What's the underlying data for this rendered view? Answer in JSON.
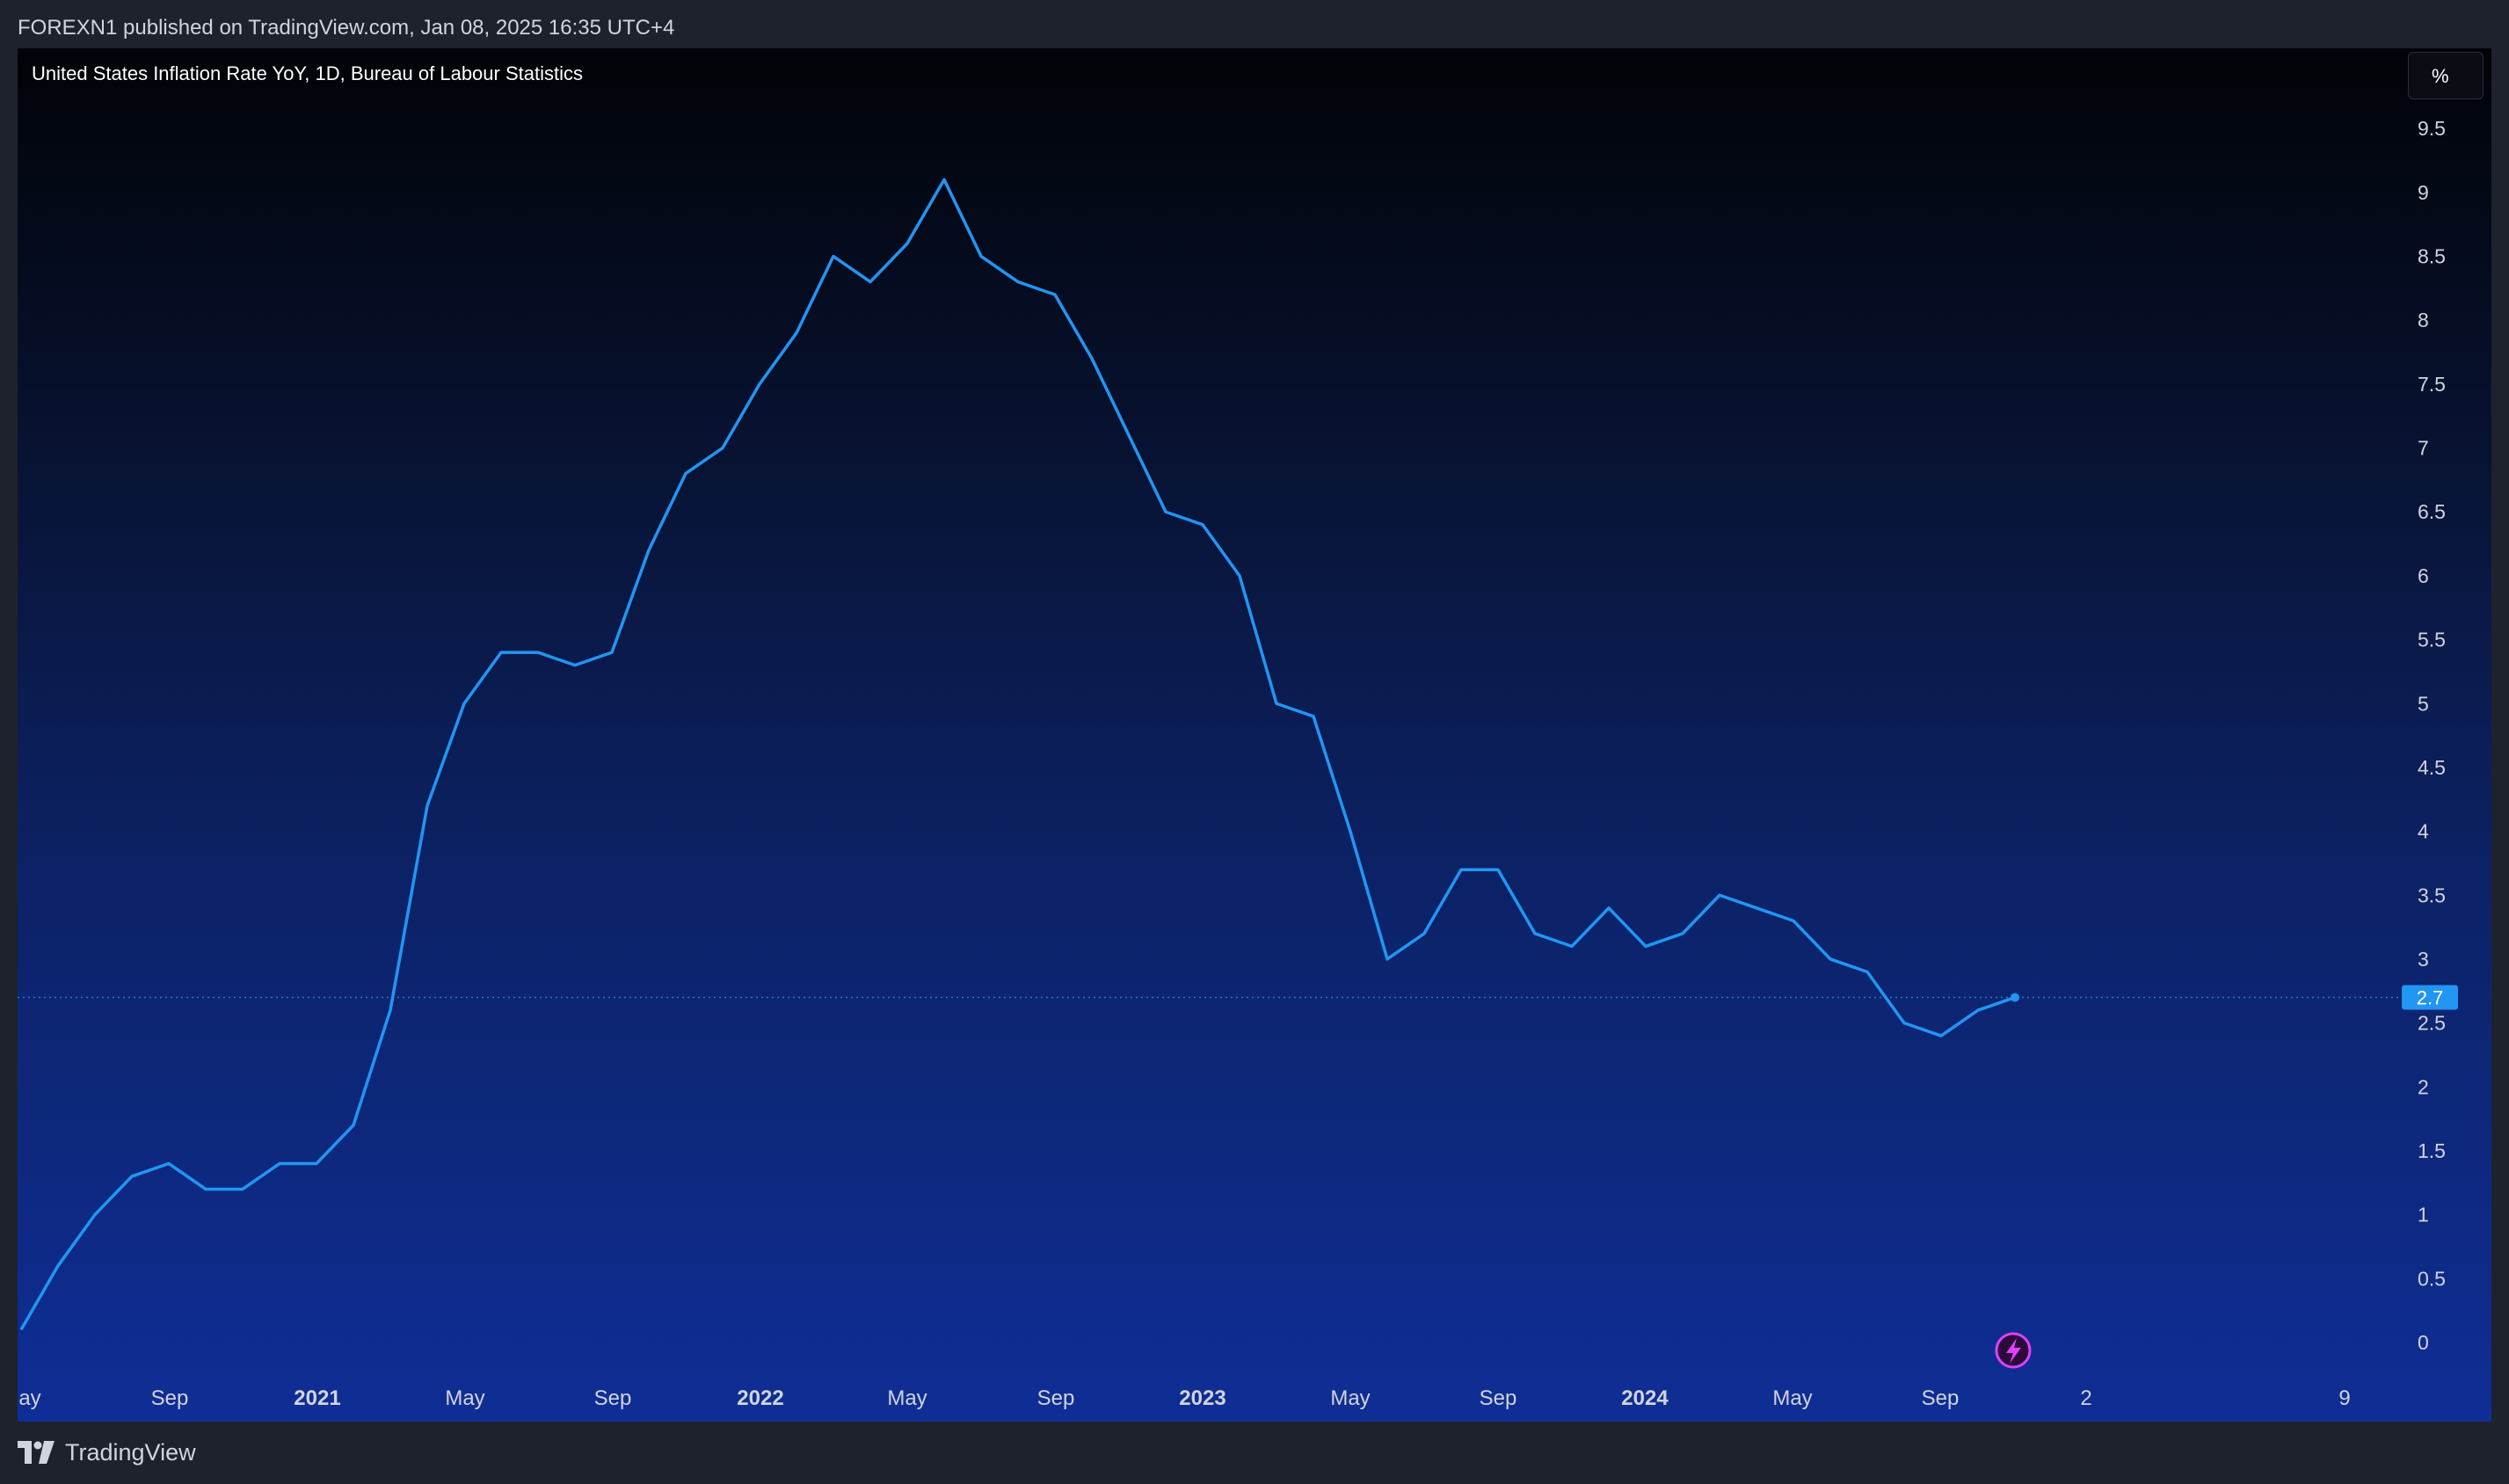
{
  "header": {
    "published": "FOREXN1 published on TradingView.com, Jan 08, 2025 16:35 UTC+4"
  },
  "chart_title": "United States Inflation Rate YoY, 1D, Bureau of Labour Statistics",
  "unit_label": "%",
  "footer": {
    "brand": "TradingView"
  },
  "colors": {
    "line": "#2196f3",
    "axis_text": "#d1d4dc",
    "badge": "#2196f3",
    "lightning": "#e040fb"
  },
  "chart_data": {
    "type": "line",
    "title": "United States Inflation Rate YoY, 1D, Bureau of Labour Statistics",
    "ylabel": "%",
    "ylim": [
      -0.25,
      9.75
    ],
    "grid": false,
    "x": [
      "2020-05",
      "2020-06",
      "2020-07",
      "2020-08",
      "2020-09",
      "2020-10",
      "2020-11",
      "2020-12",
      "2021-01",
      "2021-02",
      "2021-03",
      "2021-04",
      "2021-05",
      "2021-06",
      "2021-07",
      "2021-08",
      "2021-09",
      "2021-10",
      "2021-11",
      "2021-12",
      "2022-01",
      "2022-02",
      "2022-03",
      "2022-04",
      "2022-05",
      "2022-06",
      "2022-07",
      "2022-08",
      "2022-09",
      "2022-10",
      "2022-11",
      "2022-12",
      "2023-01",
      "2023-02",
      "2023-03",
      "2023-04",
      "2023-05",
      "2023-06",
      "2023-07",
      "2023-08",
      "2023-09",
      "2023-10",
      "2023-11",
      "2023-12",
      "2024-01",
      "2024-02",
      "2024-03",
      "2024-04",
      "2024-05",
      "2024-06",
      "2024-07",
      "2024-08",
      "2024-09",
      "2024-10",
      "2024-11"
    ],
    "series": [
      {
        "values": [
          0.1,
          0.6,
          1.0,
          1.3,
          1.4,
          1.2,
          1.2,
          1.4,
          1.4,
          1.7,
          2.6,
          4.2,
          5.0,
          5.4,
          5.4,
          5.3,
          5.4,
          6.2,
          6.8,
          7.0,
          7.5,
          7.9,
          8.5,
          8.3,
          8.6,
          9.1,
          8.5,
          8.3,
          8.2,
          7.7,
          7.1,
          6.5,
          6.4,
          6.0,
          5.0,
          4.9,
          4.0,
          3.0,
          3.2,
          3.7,
          3.7,
          3.2,
          3.1,
          3.4,
          3.1,
          3.2,
          3.5,
          3.4,
          3.3,
          3.0,
          2.9,
          2.5,
          2.4,
          2.6,
          2.7
        ]
      }
    ],
    "last_value": "2.7",
    "y_ticks": [
      "9.5",
      "9",
      "8.5",
      "8",
      "7.5",
      "7",
      "6.5",
      "6",
      "5.5",
      "5",
      "4.5",
      "4",
      "3.5",
      "3",
      "2.5",
      "2",
      "1.5",
      "1",
      "0.5",
      "0"
    ],
    "x_ticks": [
      {
        "label": "ay",
        "bold": false
      },
      {
        "label": "Sep",
        "bold": false
      },
      {
        "label": "2021",
        "bold": true
      },
      {
        "label": "May",
        "bold": false
      },
      {
        "label": "Sep",
        "bold": false
      },
      {
        "label": "2022",
        "bold": true
      },
      {
        "label": "May",
        "bold": false
      },
      {
        "label": "Sep",
        "bold": false
      },
      {
        "label": "2023",
        "bold": true
      },
      {
        "label": "May",
        "bold": false
      },
      {
        "label": "Sep",
        "bold": false
      },
      {
        "label": "2024",
        "bold": true
      },
      {
        "label": "May",
        "bold": false
      },
      {
        "label": "Sep",
        "bold": false
      },
      {
        "label": "2",
        "bold": false
      },
      {
        "label": "9",
        "bold": false
      }
    ]
  }
}
